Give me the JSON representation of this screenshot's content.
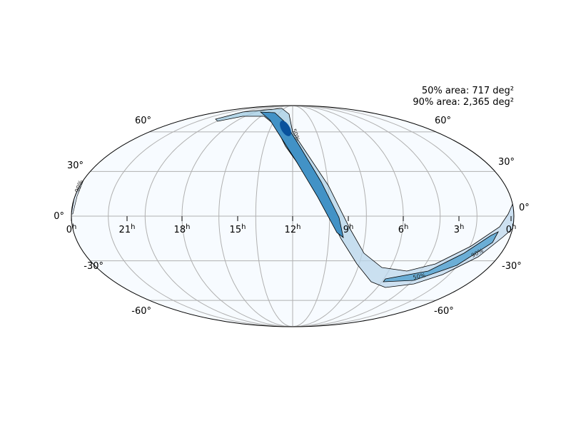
{
  "annotations": [
    "50% area: 717 deg²",
    "90% area: 2,365 deg²"
  ],
  "ra_labels": [
    "0",
    "21",
    "18",
    "15",
    "12",
    "9",
    "6",
    "3",
    "0"
  ],
  "ra_unit": "h",
  "dec_labels_left": [
    "60°",
    "30°",
    "0°",
    "-30°",
    "-60°"
  ],
  "dec_labels_right": [
    "60°",
    "30°",
    "0°",
    "-30°",
    "-60°"
  ],
  "contour_labels": [
    "50%",
    "90%",
    "50%",
    "90%"
  ]
}
